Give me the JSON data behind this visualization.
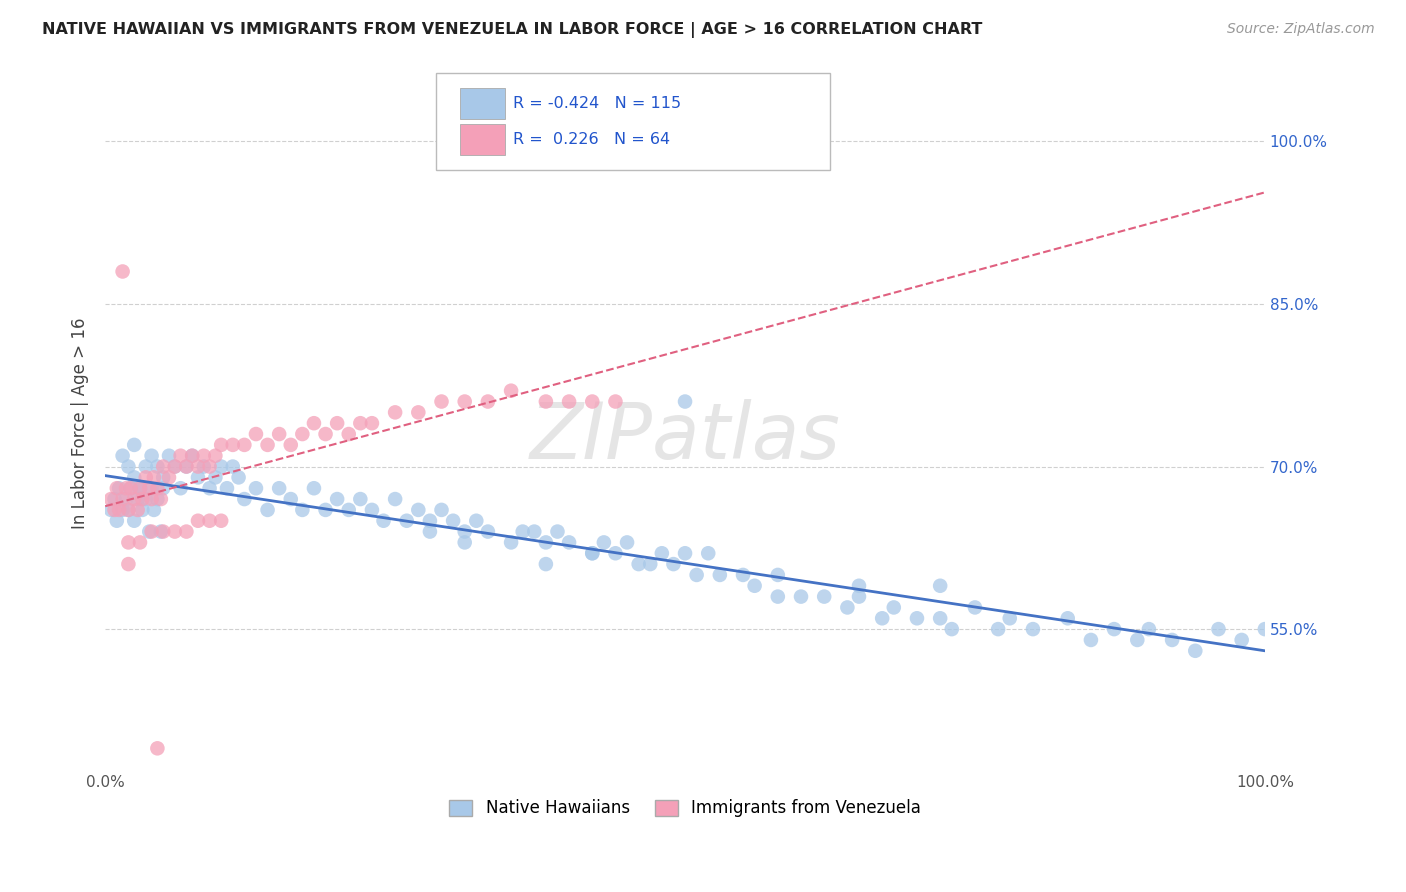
{
  "title": "NATIVE HAWAIIAN VS IMMIGRANTS FROM VENEZUELA IN LABOR FORCE | AGE > 16 CORRELATION CHART",
  "source": "Source: ZipAtlas.com",
  "ylabel": "In Labor Force | Age > 16",
  "xlim": [
    0.0,
    1.0
  ],
  "ylim": [
    0.42,
    1.06
  ],
  "y_tick_positions": [
    0.55,
    0.7,
    0.85,
    1.0
  ],
  "y_tick_labels": [
    "55.0%",
    "70.0%",
    "85.0%",
    "100.0%"
  ],
  "blue_R": -0.424,
  "blue_N": 115,
  "pink_R": 0.226,
  "pink_N": 64,
  "blue_color": "#a8c8e8",
  "pink_color": "#f4a0b8",
  "blue_line_color": "#4472c4",
  "pink_line_color": "#e06080",
  "watermark": "ZIPatlas",
  "legend_label_blue": "Native Hawaiians",
  "legend_label_pink": "Immigrants from Venezuela",
  "background_color": "#ffffff",
  "grid_color": "#d0d0d0",
  "blue_x": [
    0.005,
    0.008,
    0.01,
    0.012,
    0.015,
    0.018,
    0.02,
    0.022,
    0.025,
    0.025,
    0.028,
    0.03,
    0.032,
    0.035,
    0.038,
    0.04,
    0.042,
    0.045,
    0.048,
    0.05,
    0.015,
    0.02,
    0.025,
    0.03,
    0.035,
    0.04,
    0.045,
    0.05,
    0.055,
    0.06,
    0.065,
    0.07,
    0.075,
    0.08,
    0.085,
    0.09,
    0.095,
    0.1,
    0.105,
    0.11,
    0.115,
    0.12,
    0.13,
    0.14,
    0.15,
    0.16,
    0.17,
    0.18,
    0.19,
    0.2,
    0.21,
    0.22,
    0.23,
    0.24,
    0.25,
    0.26,
    0.27,
    0.28,
    0.29,
    0.3,
    0.31,
    0.32,
    0.33,
    0.35,
    0.36,
    0.37,
    0.38,
    0.39,
    0.4,
    0.42,
    0.43,
    0.44,
    0.45,
    0.46,
    0.48,
    0.49,
    0.5,
    0.51,
    0.52,
    0.53,
    0.55,
    0.56,
    0.58,
    0.6,
    0.62,
    0.64,
    0.65,
    0.67,
    0.68,
    0.7,
    0.72,
    0.73,
    0.75,
    0.77,
    0.78,
    0.8,
    0.83,
    0.85,
    0.87,
    0.89,
    0.9,
    0.92,
    0.94,
    0.96,
    0.98,
    1.0,
    0.5,
    0.42,
    0.47,
    0.28,
    0.31,
    0.38,
    0.65,
    0.72,
    0.58
  ],
  "blue_y": [
    0.66,
    0.67,
    0.65,
    0.68,
    0.66,
    0.67,
    0.66,
    0.68,
    0.65,
    0.69,
    0.67,
    0.68,
    0.66,
    0.67,
    0.64,
    0.68,
    0.66,
    0.67,
    0.64,
    0.68,
    0.71,
    0.7,
    0.72,
    0.68,
    0.7,
    0.71,
    0.7,
    0.69,
    0.71,
    0.7,
    0.68,
    0.7,
    0.71,
    0.69,
    0.7,
    0.68,
    0.69,
    0.7,
    0.68,
    0.7,
    0.69,
    0.67,
    0.68,
    0.66,
    0.68,
    0.67,
    0.66,
    0.68,
    0.66,
    0.67,
    0.66,
    0.67,
    0.66,
    0.65,
    0.67,
    0.65,
    0.66,
    0.65,
    0.66,
    0.65,
    0.64,
    0.65,
    0.64,
    0.63,
    0.64,
    0.64,
    0.63,
    0.64,
    0.63,
    0.62,
    0.63,
    0.62,
    0.63,
    0.61,
    0.62,
    0.61,
    0.62,
    0.6,
    0.62,
    0.6,
    0.6,
    0.59,
    0.6,
    0.58,
    0.58,
    0.57,
    0.58,
    0.56,
    0.57,
    0.56,
    0.56,
    0.55,
    0.57,
    0.55,
    0.56,
    0.55,
    0.56,
    0.54,
    0.55,
    0.54,
    0.55,
    0.54,
    0.53,
    0.55,
    0.54,
    0.55,
    0.76,
    0.62,
    0.61,
    0.64,
    0.63,
    0.61,
    0.59,
    0.59,
    0.58
  ],
  "pink_x": [
    0.005,
    0.008,
    0.01,
    0.012,
    0.015,
    0.018,
    0.02,
    0.022,
    0.025,
    0.028,
    0.03,
    0.032,
    0.035,
    0.038,
    0.04,
    0.042,
    0.045,
    0.048,
    0.05,
    0.055,
    0.06,
    0.065,
    0.07,
    0.075,
    0.08,
    0.085,
    0.09,
    0.095,
    0.1,
    0.11,
    0.12,
    0.13,
    0.14,
    0.15,
    0.16,
    0.17,
    0.18,
    0.19,
    0.2,
    0.21,
    0.22,
    0.23,
    0.25,
    0.27,
    0.29,
    0.31,
    0.33,
    0.35,
    0.38,
    0.4,
    0.42,
    0.44,
    0.02,
    0.04,
    0.06,
    0.08,
    0.1,
    0.02,
    0.03,
    0.05,
    0.07,
    0.09,
    0.015,
    0.045
  ],
  "pink_y": [
    0.67,
    0.66,
    0.68,
    0.66,
    0.67,
    0.68,
    0.66,
    0.68,
    0.67,
    0.66,
    0.68,
    0.67,
    0.69,
    0.68,
    0.67,
    0.69,
    0.68,
    0.67,
    0.7,
    0.69,
    0.7,
    0.71,
    0.7,
    0.71,
    0.7,
    0.71,
    0.7,
    0.71,
    0.72,
    0.72,
    0.72,
    0.73,
    0.72,
    0.73,
    0.72,
    0.73,
    0.74,
    0.73,
    0.74,
    0.73,
    0.74,
    0.74,
    0.75,
    0.75,
    0.76,
    0.76,
    0.76,
    0.77,
    0.76,
    0.76,
    0.76,
    0.76,
    0.63,
    0.64,
    0.64,
    0.65,
    0.65,
    0.61,
    0.63,
    0.64,
    0.64,
    0.65,
    0.88,
    0.44
  ]
}
